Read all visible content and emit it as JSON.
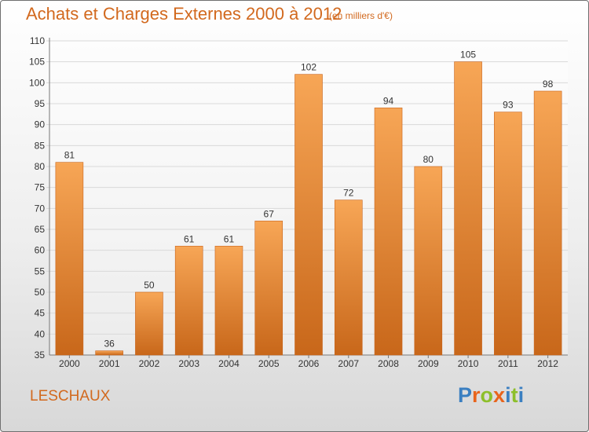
{
  "header": {
    "title": "Achats et Charges Externes 2000 à 2012",
    "unit": "(en milliers d'€)"
  },
  "footer": {
    "commune": "LESCHAUX",
    "logo_text": "Proxiti",
    "logo_letters": [
      {
        "char": "P",
        "color": "#3a7fc1"
      },
      {
        "char": "r",
        "color": "#e8641c"
      },
      {
        "char": "o",
        "color": "#8dbf2b"
      },
      {
        "char": "x",
        "color": "#e8641c"
      },
      {
        "char": "i",
        "color": "#3a7fc1"
      },
      {
        "char": "t",
        "color": "#8dbf2b"
      },
      {
        "char": "i",
        "color": "#3a7fc1"
      }
    ]
  },
  "chart_data": {
    "type": "bar",
    "title": "Achats et Charges Externes 2000 à 2012",
    "subtitle": "(en milliers d'€)",
    "categories": [
      "2000",
      "2001",
      "2002",
      "2003",
      "2004",
      "2005",
      "2006",
      "2007",
      "2008",
      "2009",
      "2010",
      "2011",
      "2012"
    ],
    "values": [
      81,
      36,
      50,
      61,
      61,
      67,
      102,
      72,
      94,
      80,
      105,
      93,
      98
    ],
    "data_labels": [
      "81",
      "36",
      "50",
      "61",
      "61",
      "67",
      "102",
      "72",
      "94",
      "80",
      "105",
      "93",
      "98"
    ],
    "ylim": [
      35,
      110
    ],
    "yticks": [
      35,
      40,
      45,
      50,
      55,
      60,
      65,
      70,
      75,
      80,
      85,
      90,
      95,
      100,
      105,
      110
    ],
    "grid": true,
    "bar_color_top": "#f7a656",
    "bar_color_bottom": "#c8671a"
  }
}
